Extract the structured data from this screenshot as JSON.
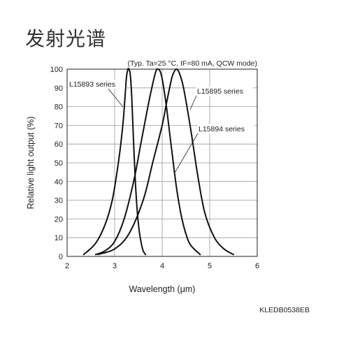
{
  "page": {
    "title": "发射光谱",
    "figure_code": "KLEDB0538EB"
  },
  "chart_data": {
    "type": "line",
    "note": "(Typ. Ta=25 °C, IF=80 mA, QCW mode)",
    "xlabel": "Wavelength (μm)",
    "ylabel": "Relative light output (%)",
    "xlim": [
      2,
      6
    ],
    "ylim": [
      0,
      100
    ],
    "x_ticks": [
      2,
      3,
      4,
      5,
      6
    ],
    "y_ticks": [
      0,
      10,
      20,
      30,
      40,
      50,
      60,
      70,
      80,
      90,
      100
    ],
    "grid": true,
    "series": [
      {
        "name": "L15893 series",
        "x": [
          2.35,
          2.6,
          2.8,
          2.95,
          3.05,
          3.12,
          3.18,
          3.22,
          3.25,
          3.28,
          3.3,
          3.33,
          3.36,
          3.4,
          3.44,
          3.48,
          3.52,
          3.56,
          3.6,
          3.65
        ],
        "y": [
          1,
          7,
          17,
          30,
          45,
          58,
          72,
          86,
          96,
          100,
          100,
          97,
          85,
          60,
          38,
          23,
          13,
          7,
          3,
          1
        ]
      },
      {
        "name": "L15894 series",
        "x": [
          2.6,
          2.8,
          3.0,
          3.2,
          3.4,
          3.55,
          3.7,
          3.8,
          3.87,
          3.92,
          3.97,
          4.02,
          4.1,
          4.2,
          4.3,
          4.4,
          4.5,
          4.6,
          4.8
        ],
        "y": [
          1,
          3,
          8,
          20,
          40,
          60,
          80,
          92,
          99,
          100,
          98,
          92,
          78,
          57,
          37,
          22,
          12,
          6,
          1
        ]
      },
      {
        "name": "L15895 series",
        "x": [
          2.65,
          3.0,
          3.3,
          3.6,
          3.8,
          4.0,
          4.1,
          4.2,
          4.26,
          4.3,
          4.36,
          4.45,
          4.6,
          4.75,
          4.9,
          5.1,
          5.3,
          5.5
        ],
        "y": [
          1,
          4,
          12,
          30,
          50,
          70,
          83,
          95,
          99,
          100,
          98,
          90,
          68,
          43,
          23,
          10,
          4,
          1
        ]
      }
    ],
    "annotations": [
      {
        "text": "L15893 series",
        "series": "L15893 series"
      },
      {
        "text": "L15895 series",
        "series": "L15895 series"
      },
      {
        "text": "L15894 series",
        "series": "L15894 series"
      }
    ]
  }
}
